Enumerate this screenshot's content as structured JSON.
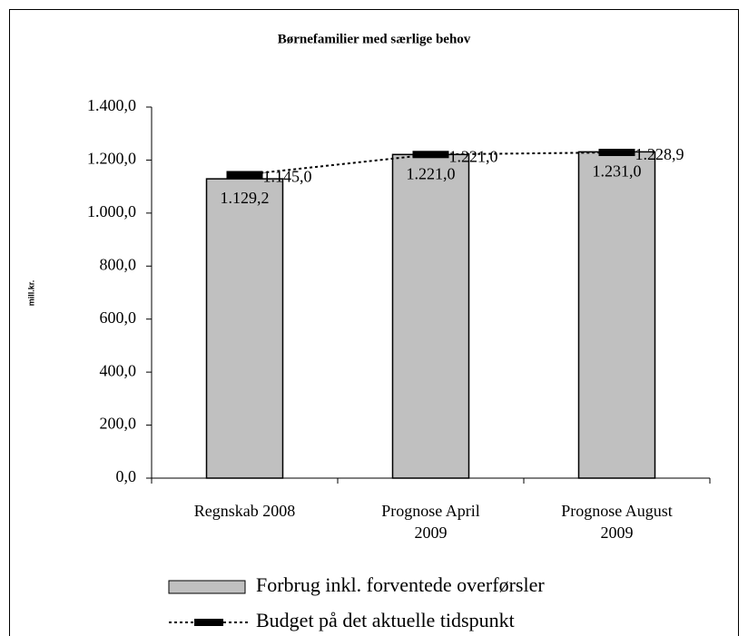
{
  "chart_data": {
    "type": "bar",
    "title": "Børnefamilier med særlige behov",
    "y_label": "mill.kr.",
    "categories": [
      "Regnskab 2008",
      "Prognose April 2009",
      "Prognose August 2009"
    ],
    "series": [
      {
        "name": "Forbrug inkl. forventede overførsler",
        "type": "bar",
        "color": "#c0c0c0",
        "values": [
          1129.2,
          1221.0,
          1231.0
        ],
        "value_labels": [
          "1.129,2",
          "1.221,0",
          "1.231,0"
        ]
      },
      {
        "name": "Budget på det aktuelle tidspunkt",
        "type": "line",
        "color": "#000000",
        "values": [
          1145.0,
          1221.0,
          1228.9
        ],
        "value_labels": [
          "1.145,0",
          "1.221,0",
          "1.228,9"
        ]
      }
    ],
    "ylim": [
      0,
      1400
    ],
    "yticks": [
      {
        "value": 0,
        "label": "0,0"
      },
      {
        "value": 200,
        "label": "200,0"
      },
      {
        "value": 400,
        "label": "400,0"
      },
      {
        "value": 600,
        "label": "600,0"
      },
      {
        "value": 800,
        "label": "800,0"
      },
      {
        "value": 1000,
        "label": "1.000,0"
      },
      {
        "value": 1200,
        "label": "1.200,0"
      },
      {
        "value": 1400,
        "label": "1.400,0"
      }
    ],
    "grid": false,
    "legend": "bottom"
  }
}
